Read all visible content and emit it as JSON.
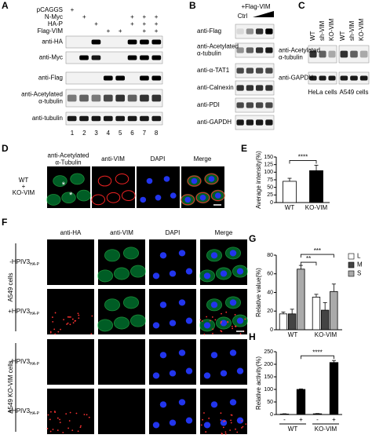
{
  "panel_letters": [
    "A",
    "B",
    "C",
    "D",
    "E",
    "F",
    "G",
    "H"
  ],
  "A": {
    "sign": "+",
    "rows": [
      {
        "label": "pCAGGS",
        "lanes": [
          1
        ]
      },
      {
        "label": "N-Myc",
        "lanes": [
          2,
          6,
          7,
          8
        ]
      },
      {
        "label": "HA-P",
        "lanes": [
          3,
          6,
          7,
          8
        ]
      },
      {
        "label": "Flag-VIM",
        "lanes": [
          4,
          5,
          7,
          8
        ]
      }
    ],
    "blots": [
      [
        "anti-HA"
      ],
      [
        "anti-Myc"
      ],
      [
        "anti-Flag"
      ],
      [
        "anti-Acetylated",
        "α-tubulin"
      ],
      [
        "anti-tubulin"
      ]
    ],
    "lanes": [
      "1",
      "2",
      "3",
      "4",
      "5",
      "6",
      "7",
      "8"
    ]
  },
  "B": {
    "header": "+Flag-VIM",
    "control": "Ctrl",
    "blots": [
      [
        "anti-Flag"
      ],
      [
        "anti-Acetylated",
        "α-tubulin"
      ],
      [
        "anti-α-TAT1"
      ],
      [
        "anti-Calnexin"
      ],
      [
        "anti-PDI"
      ],
      [
        "anti-GAPDH"
      ]
    ]
  },
  "C": {
    "lanes": [
      "WT",
      "sh-VIM",
      "KO-VIM",
      "WT",
      "sh-VIM",
      "KO-VIM"
    ],
    "blots": [
      [
        "anti-Acetylated",
        "α-tubulin"
      ],
      [
        "anti-GAPDH"
      ]
    ],
    "cells": [
      "HeLa cells",
      "A549 cells"
    ]
  },
  "D": {
    "columns": [
      [
        "anti-Acetylated",
        "α-Tubulin"
      ],
      [
        "anti-VIM"
      ],
      [
        "DAPI"
      ],
      [
        "Merge"
      ]
    ],
    "row": [
      "WT",
      "+",
      "KO-VIM"
    ],
    "asterisk": "*"
  },
  "F": {
    "columns": [
      "anti-HA",
      "anti-VIM",
      "DAPI",
      "Merge"
    ],
    "groups": [
      "A549 cells",
      "A549 KO-VIM cells"
    ],
    "rows": [
      {
        "text": "-HPIV3",
        "sub": "HA-P"
      },
      {
        "text": "+HPIV3",
        "sub": "HA-P"
      },
      {
        "text": "-HPIV3",
        "sub": "HA-P"
      },
      {
        "text": "+HPIV3",
        "sub": "HA-P"
      }
    ]
  },
  "chart_data": [
    {
      "type": "bar",
      "ylabel": "Average intensity(%)",
      "categories": [
        "WT",
        "KO-VIM"
      ],
      "values": [
        70,
        105
      ],
      "errors": [
        10,
        18
      ],
      "colors": [
        "#ffffff",
        "#000000"
      ],
      "ylim": [
        0,
        150
      ],
      "yticks": [
        0,
        25,
        50,
        75,
        100,
        125,
        150
      ],
      "annotations": [
        "****"
      ]
    },
    {
      "type": "bar",
      "ylabel": "Relative value(%)",
      "categories": [
        "WT",
        "KO-VIM"
      ],
      "series": [
        {
          "name": "L",
          "color": "#ffffff",
          "values": [
            17,
            35
          ],
          "errors": [
            2,
            3
          ]
        },
        {
          "name": "M",
          "color": "#444444",
          "values": [
            17,
            21
          ],
          "errors": [
            5,
            8
          ]
        },
        {
          "name": "S",
          "color": "#aaaaaa",
          "values": [
            65,
            41
          ],
          "errors": [
            4,
            8
          ]
        }
      ],
      "ylim": [
        0,
        80
      ],
      "yticks": [
        0,
        20,
        40,
        60,
        80
      ],
      "annotations": [
        "**",
        "***"
      ]
    },
    {
      "type": "bar",
      "ylabel": "Relative activity(%)",
      "categories": [
        "-",
        "+",
        "-",
        "+"
      ],
      "groups": [
        "WT",
        "KO-VIM"
      ],
      "values": [
        2,
        100,
        3,
        207
      ],
      "errors": [
        1,
        2,
        1,
        8
      ],
      "color": "#000000",
      "ylim": [
        0,
        250
      ],
      "yticks": [
        0,
        50,
        100,
        150,
        200,
        250
      ],
      "annotations": [
        "****"
      ]
    }
  ]
}
